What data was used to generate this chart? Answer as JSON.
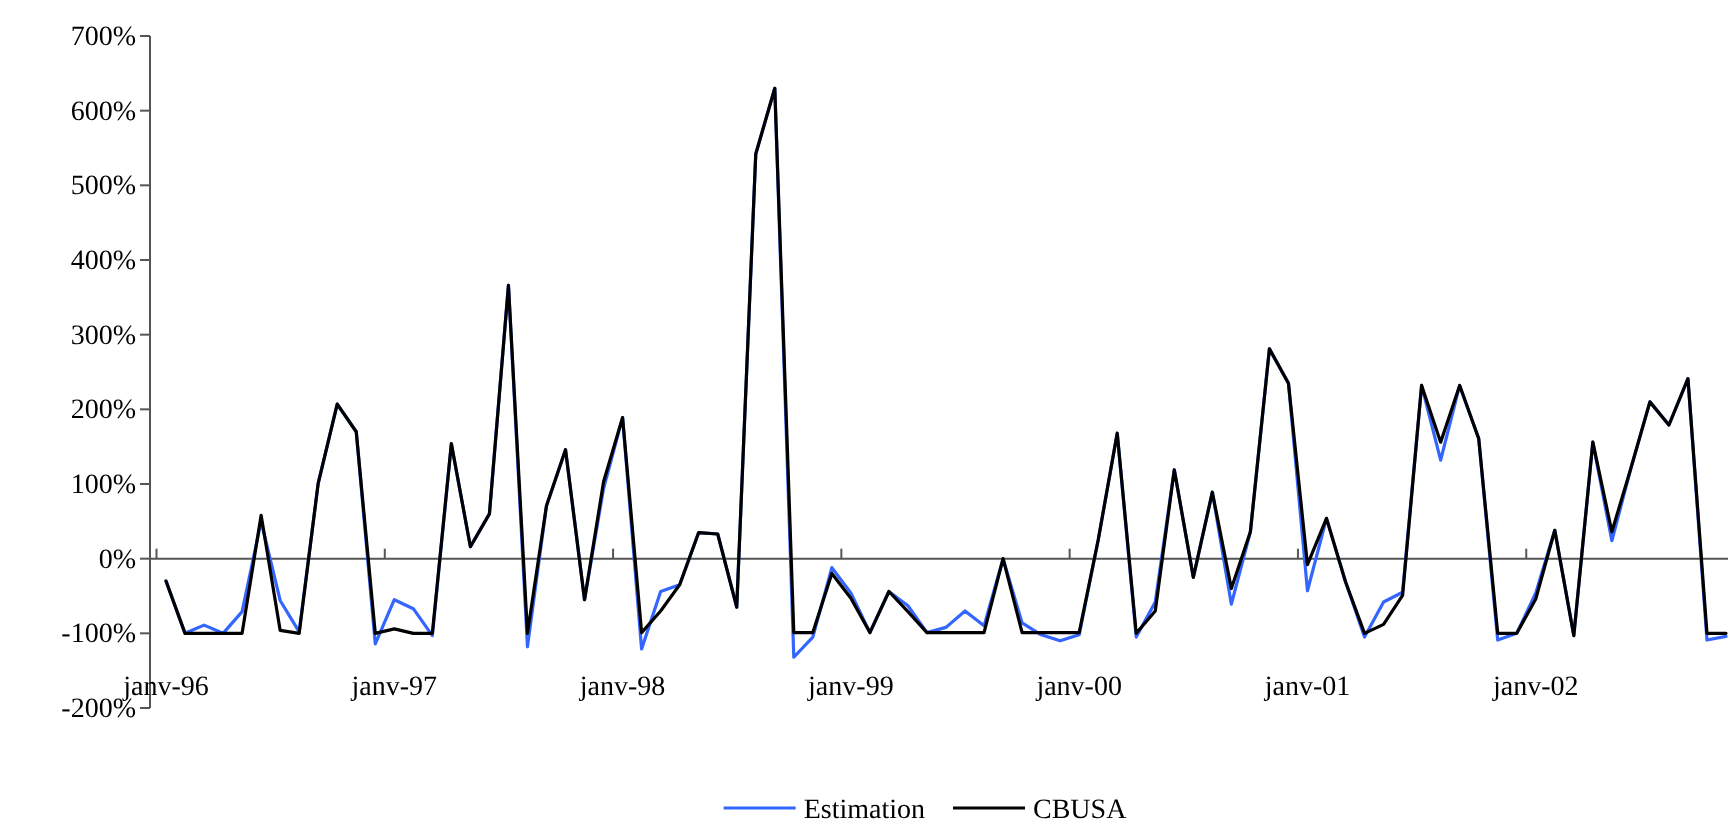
{
  "chart_data": {
    "type": "line",
    "ylim": [
      -200,
      700
    ],
    "yticks": [
      {
        "value": -200,
        "label": "-200%"
      },
      {
        "value": -100,
        "label": "-100%"
      },
      {
        "value": 0,
        "label": "0%"
      },
      {
        "value": 100,
        "label": "100%"
      },
      {
        "value": 200,
        "label": "200%"
      },
      {
        "value": 300,
        "label": "300%"
      },
      {
        "value": 400,
        "label": "400%"
      },
      {
        "value": 500,
        "label": "500%"
      },
      {
        "value": 600,
        "label": "600%"
      },
      {
        "value": 700,
        "label": "700%"
      }
    ],
    "categories": [
      "janv-96",
      null,
      null,
      null,
      null,
      null,
      null,
      null,
      null,
      null,
      null,
      null,
      "janv-97",
      null,
      null,
      null,
      null,
      null,
      null,
      null,
      null,
      null,
      null,
      null,
      "janv-98",
      null,
      null,
      null,
      null,
      null,
      null,
      null,
      null,
      null,
      null,
      null,
      "janv-99",
      null,
      null,
      null,
      null,
      null,
      null,
      null,
      null,
      null,
      null,
      null,
      "janv-00",
      null,
      null,
      null,
      null,
      null,
      null,
      null,
      null,
      null,
      null,
      null,
      "janv-01",
      null,
      null,
      null,
      null,
      null,
      null,
      null,
      null,
      null,
      null,
      null,
      "janv-02",
      null,
      null,
      null,
      null,
      null,
      null,
      null,
      null,
      null,
      null
    ],
    "grid": false,
    "ref_lines": [
      {
        "axis": "y",
        "value": 0,
        "color": "#555555"
      }
    ],
    "legend": "bottom",
    "marker": "none",
    "line_style": "solid",
    "series": [
      {
        "name": "Estimation",
        "color": "#3366ff",
        "values": [
          -30,
          -100,
          -89,
          -100,
          -71,
          50,
          -56,
          -98,
          101,
          207,
          170,
          -114,
          -55,
          -67,
          -103,
          154,
          16,
          60,
          366,
          -118,
          71,
          146,
          -55,
          94,
          189,
          -121,
          -44,
          -35,
          35,
          33,
          -65,
          542,
          630,
          -132,
          -105,
          -12,
          -46,
          -99,
          -44,
          -63,
          -99,
          -92,
          -70,
          -90,
          0,
          -86,
          -102,
          -110,
          -102,
          25,
          168,
          -105,
          -58,
          119,
          -25,
          89,
          -61,
          36,
          281,
          235,
          -43,
          54,
          -31,
          -105,
          -58,
          -45,
          232,
          132,
          232,
          161,
          -109,
          -100,
          -46,
          38,
          -103,
          156,
          24,
          121,
          210,
          179,
          241,
          -109,
          -104
        ]
      },
      {
        "name": "CBUSA",
        "color": "#000000",
        "values": [
          -30,
          -100,
          -100,
          -100,
          -100,
          58,
          -96,
          -100,
          101,
          207,
          170,
          -100,
          -94,
          -100,
          -100,
          154,
          16,
          60,
          366,
          -100,
          71,
          146,
          -55,
          103,
          189,
          -99,
          -70,
          -35,
          35,
          33,
          -65,
          542,
          630,
          -99,
          -99,
          -20,
          -53,
          -99,
          -44,
          -71,
          -99,
          -99,
          -99,
          -99,
          0,
          -99,
          -99,
          -99,
          -99,
          25,
          168,
          -100,
          -70,
          119,
          -25,
          89,
          -40,
          36,
          281,
          235,
          -8,
          54,
          -31,
          -100,
          -88,
          -49,
          232,
          156,
          232,
          161,
          -100,
          -100,
          -54,
          38,
          -103,
          156,
          36,
          121,
          210,
          179,
          241,
          -100,
          -100
        ]
      }
    ]
  }
}
